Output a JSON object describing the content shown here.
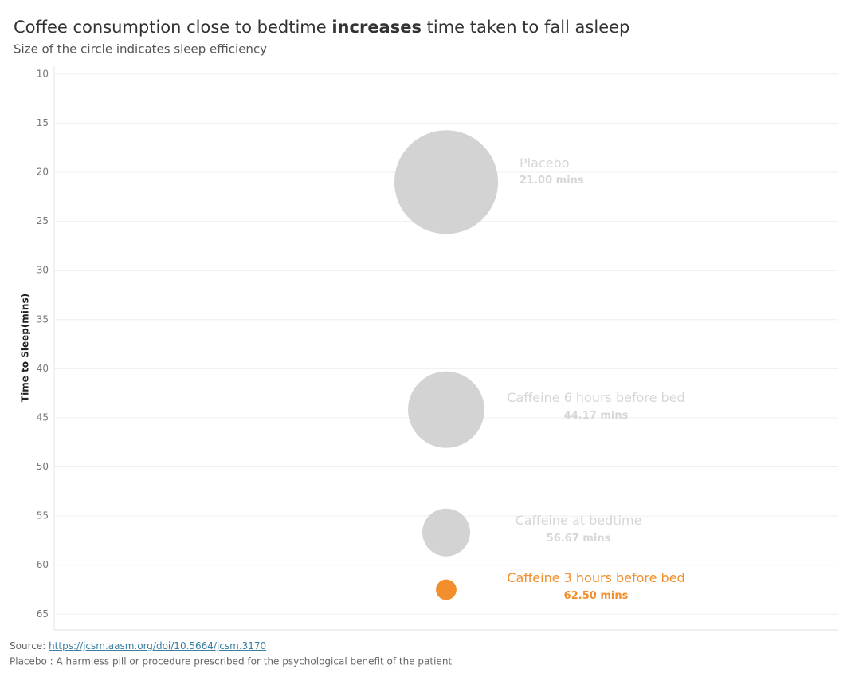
{
  "chart_data": {
    "type": "bubble",
    "title": [
      "Coffee consumption close to bedtime ",
      "increases",
      " time taken to fall asleep"
    ],
    "subtitle": "Size of the circle indicates sleep efficiency",
    "y_label": "Time to Sleep(mins)",
    "categories": [
      "Placebo",
      "Caffeine 6 hours before bed",
      "Caffeine at bedtime",
      "Caffeine 3 hours before bed"
    ],
    "values": [
      21.0,
      44.17,
      56.67,
      62.5
    ],
    "value_labels": [
      "21.00 mins",
      "44.17 mins",
      "56.67 mins",
      "62.50 mins"
    ],
    "sizes": [
      82.7,
      76.9,
      72.7,
      70.5
    ],
    "colors": [
      "#d3d3d3",
      "#d3d3d3",
      "#d3d3d3",
      "#f28e2b"
    ],
    "label_colors": [
      "#d6d6d6",
      "#d6d6d6",
      "#d6d6d6",
      "#f28e2b"
    ],
    "ylim": [
      9.2,
      66.6
    ],
    "y_inverted": true,
    "yticks": [
      10,
      15,
      20,
      25,
      30,
      35,
      40,
      45,
      50,
      55,
      60,
      65
    ],
    "grid": true,
    "notes": {
      "source_label": "Source: ",
      "source_url": "https://jcsm.aasm.org/doi/10.5664/jcsm.3170",
      "placebo_note": "Placebo : A harmless pill or procedure prescribed for the psychological benefit of the patient"
    }
  }
}
